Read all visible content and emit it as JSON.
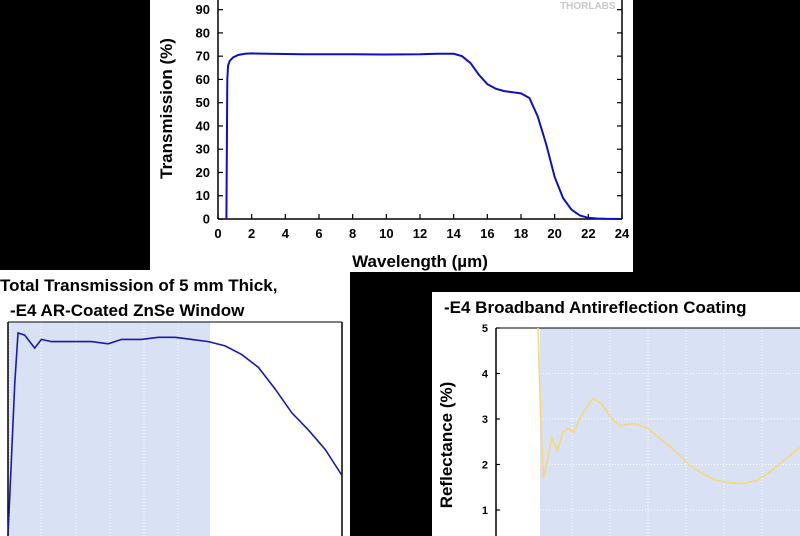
{
  "chart_data": [
    {
      "type": "line",
      "watermark": "THORLABS",
      "xlabel": "Wavelength (µm)",
      "ylabel": "Transmission (%)",
      "xlim": [
        0,
        24
      ],
      "ylim": [
        0,
        95
      ],
      "xticks": [
        "0",
        "2",
        "4",
        "6",
        "8",
        "10",
        "12",
        "14",
        "16",
        "18",
        "20",
        "22",
        "24"
      ],
      "yticks": [
        "0",
        "10",
        "20",
        "30",
        "40",
        "50",
        "60",
        "70",
        "80",
        "90"
      ],
      "series": [
        {
          "color": "#1010c0",
          "x": [
            0.5,
            0.55,
            0.6,
            0.7,
            0.9,
            1.2,
            1.6,
            2,
            3,
            5,
            8,
            10,
            12,
            13,
            14,
            14.5,
            15,
            15.5,
            16,
            16.5,
            17,
            17.5,
            18,
            18.5,
            19,
            19.5,
            20,
            20.5,
            21,
            21.5,
            22,
            22.5,
            23,
            24
          ],
          "y": [
            0,
            60,
            66,
            68,
            69.5,
            70.5,
            71,
            71.2,
            71,
            70.8,
            70.8,
            70.7,
            70.8,
            71,
            71,
            70,
            67,
            62,
            58,
            56,
            55,
            54.5,
            54,
            52,
            44,
            32,
            18,
            9,
            4,
            1.5,
            0.5,
            0.2,
            0.1,
            0
          ]
        }
      ]
    },
    {
      "type": "line",
      "title_line1": "Total Transmission of 5 mm Thick,",
      "title_line2": "-E4 AR-Coated ZnSe Window",
      "series": [
        {
          "color": "#1a1aa8",
          "x": [
            0.0,
            0.02,
            0.03,
            0.05,
            0.08,
            0.1,
            0.13,
            0.18,
            0.25,
            0.3,
            0.34,
            0.4,
            0.45,
            0.5,
            0.55,
            0.6,
            0.65,
            0.7,
            0.75,
            0.8,
            0.85,
            0.9,
            0.95,
            1.0
          ],
          "y": [
            0.0,
            0.7,
            0.94,
            0.93,
            0.87,
            0.91,
            0.9,
            0.9,
            0.9,
            0.89,
            0.91,
            0.91,
            0.92,
            0.92,
            0.91,
            0.9,
            0.88,
            0.84,
            0.78,
            0.68,
            0.57,
            0.49,
            0.4,
            0.28
          ]
        }
      ]
    },
    {
      "type": "line",
      "title": "-E4 Broadband Antireflection Coating",
      "ylabel": "Reflectance (%)",
      "yticks": [
        "1",
        "2",
        "3",
        "4",
        "5"
      ],
      "ylim": [
        0,
        5
      ],
      "series": [
        {
          "color": "#f5d87a",
          "x": [
            0.0,
            0.01,
            0.02,
            0.035,
            0.05,
            0.07,
            0.09,
            0.11,
            0.13,
            0.16,
            0.2,
            0.23,
            0.27,
            0.3,
            0.35,
            0.4,
            0.45,
            0.5,
            0.55,
            0.6,
            0.65,
            0.7,
            0.75,
            0.8,
            0.85,
            0.9,
            0.95,
            1.0
          ],
          "y": [
            5,
            3.0,
            1.7,
            2.1,
            2.6,
            2.3,
            2.7,
            2.8,
            2.7,
            3.1,
            3.45,
            3.35,
            3.0,
            2.85,
            2.9,
            2.8,
            2.55,
            2.3,
            2.0,
            1.8,
            1.65,
            1.6,
            1.58,
            1.65,
            1.85,
            2.1,
            2.35,
            2.55
          ]
        }
      ]
    }
  ]
}
